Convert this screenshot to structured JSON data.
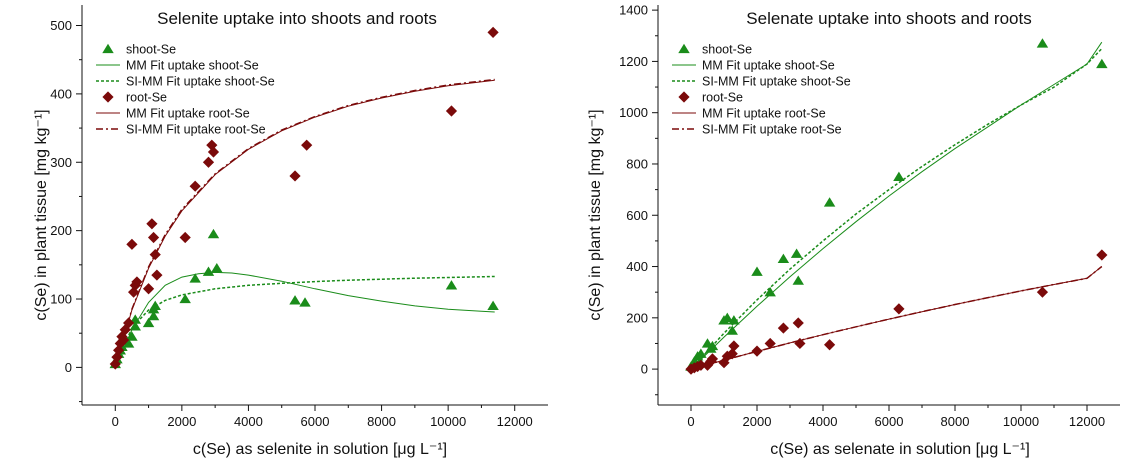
{
  "colors": {
    "shoot": "#1a8c1a",
    "root": "#7b0a0a",
    "axis": "#111111"
  },
  "chart_data": [
    {
      "type": "scatter",
      "title": "Selenite uptake into shoots and roots",
      "xlabel": "c(Se) as selenite in solution [μg L⁻¹]",
      "ylabel": "c(Se) in plant tissue [mg kg⁻¹]",
      "xlim": [
        -1000,
        13000
      ],
      "ylim": [
        -55,
        530
      ],
      "xticks": [
        0,
        2000,
        4000,
        6000,
        8000,
        10000,
        12000
      ],
      "yticks": [
        0,
        100,
        200,
        300,
        400,
        500
      ],
      "tick_labels_x": [
        "0",
        "2000",
        "4000",
        "6000",
        "8000",
        "10000",
        "12000"
      ],
      "tick_labels_y": [
        "0",
        "100",
        "200",
        "300",
        "400",
        "500"
      ],
      "legend_position": "top-left",
      "legend": [
        {
          "label": "shoot-Se",
          "kind": "marker-triangle",
          "color": "shoot"
        },
        {
          "label": "MM Fit uptake shoot-Se",
          "kind": "line-solid",
          "color": "shoot"
        },
        {
          "label": "SI-MM Fit uptake shoot-Se",
          "kind": "line-dotted",
          "color": "shoot"
        },
        {
          "label": "root-Se",
          "kind": "marker-diamond",
          "color": "root"
        },
        {
          "label": "MM Fit uptake root-Se",
          "kind": "line-solid",
          "color": "root"
        },
        {
          "label": "SI-MM Fit uptake root-Se",
          "kind": "line-dashdot",
          "color": "root"
        }
      ],
      "series": [
        {
          "name": "shoot-Se",
          "kind": "scatter",
          "marker": "triangle",
          "color": "shoot",
          "x": [
            0,
            50,
            100,
            150,
            200,
            300,
            400,
            500,
            600,
            600,
            1000,
            1150,
            1150,
            1200,
            2100,
            2400,
            2800,
            2950,
            3050,
            5400,
            5700,
            10100,
            11350
          ],
          "y": [
            5,
            12,
            20,
            25,
            30,
            40,
            35,
            45,
            60,
            70,
            65,
            75,
            85,
            90,
            100,
            130,
            140,
            195,
            145,
            98,
            95,
            120,
            90
          ]
        },
        {
          "name": "root-Se",
          "kind": "scatter",
          "marker": "diamond",
          "color": "root",
          "x": [
            0,
            50,
            100,
            150,
            200,
            250,
            300,
            400,
            500,
            550,
            600,
            650,
            1000,
            1100,
            1150,
            1200,
            1250,
            2100,
            2400,
            2800,
            2900,
            2950,
            5400,
            5750,
            10100,
            11350
          ],
          "y": [
            5,
            15,
            25,
            35,
            45,
            40,
            55,
            65,
            180,
            110,
            120,
            125,
            115,
            210,
            190,
            165,
            135,
            190,
            265,
            300,
            325,
            315,
            280,
            325,
            375,
            490
          ]
        },
        {
          "name": "MM Fit uptake shoot-Se",
          "kind": "line",
          "style": "solid",
          "color": "shoot",
          "x": [
            0,
            500,
            1000,
            1500,
            2000,
            2500,
            3000,
            3500,
            4000,
            5000,
            6000,
            7000,
            8000,
            9000,
            10000,
            11000,
            11400
          ],
          "y": [
            0,
            55,
            95,
            120,
            132,
            137,
            139,
            138,
            135,
            126,
            115,
            105,
            97,
            90,
            85,
            82,
            81
          ]
        },
        {
          "name": "SI-MM Fit uptake shoot-Se",
          "kind": "line",
          "style": "dotted",
          "color": "shoot",
          "x": [
            0,
            500,
            1000,
            1500,
            2000,
            3000,
            4000,
            5000,
            6000,
            7000,
            8000,
            9000,
            10000,
            11400
          ],
          "y": [
            0,
            58,
            84,
            98,
            106,
            115,
            120,
            123,
            125.5,
            127.5,
            129,
            130.5,
            131.5,
            133
          ]
        },
        {
          "name": "MM Fit uptake root-Se",
          "kind": "line",
          "style": "solid",
          "color": "root",
          "x": [
            0,
            500,
            1000,
            1500,
            2000,
            3000,
            4000,
            5000,
            6000,
            7000,
            8000,
            9000,
            10000,
            11400
          ],
          "y": [
            0,
            84,
            145,
            192,
            229,
            282,
            319,
            346,
            366,
            382,
            394,
            404,
            412,
            420
          ]
        },
        {
          "name": "SI-MM Fit uptake root-Se",
          "kind": "line",
          "style": "dashdot",
          "color": "root",
          "x": [
            0,
            500,
            1000,
            1500,
            2000,
            3000,
            4000,
            5000,
            6000,
            7000,
            8000,
            9000,
            10000,
            11400
          ],
          "y": [
            0,
            85,
            147,
            194,
            231,
            283,
            320,
            347,
            367,
            383,
            395,
            405,
            413,
            421
          ]
        }
      ]
    },
    {
      "type": "scatter",
      "title": "Selenate uptake into shoots and roots",
      "xlabel": "c(Se) as selenate in solution [μg L⁻¹]",
      "ylabel": "c(Se) in plant tissue [mg kg⁻¹]",
      "xlim": [
        -1000,
        13000
      ],
      "ylim": [
        -140,
        1420
      ],
      "xticks": [
        0,
        2000,
        4000,
        6000,
        8000,
        10000,
        12000
      ],
      "yticks": [
        0,
        200,
        400,
        600,
        800,
        1000,
        1200,
        1400
      ],
      "tick_labels_x": [
        "0",
        "2000",
        "4000",
        "6000",
        "8000",
        "10000",
        "12000"
      ],
      "tick_labels_y": [
        "0",
        "200",
        "400",
        "600",
        "800",
        "1000",
        "1200",
        "1400"
      ],
      "legend_position": "top-left",
      "legend": [
        {
          "label": "shoot-Se",
          "kind": "marker-triangle",
          "color": "shoot"
        },
        {
          "label": "MM Fit uptake shoot-Se",
          "kind": "line-solid",
          "color": "shoot"
        },
        {
          "label": "SI-MM Fit uptake shoot-Se",
          "kind": "line-dotted",
          "color": "shoot"
        },
        {
          "label": "root-Se",
          "kind": "marker-diamond",
          "color": "root"
        },
        {
          "label": "MM Fit uptake root-Se",
          "kind": "line-solid",
          "color": "root"
        },
        {
          "label": "SI-MM Fit uptake root-Se",
          "kind": "line-dashdot",
          "color": "root"
        }
      ],
      "series": [
        {
          "name": "shoot-Se",
          "kind": "scatter",
          "marker": "triangle",
          "color": "shoot",
          "x": [
            0,
            100,
            200,
            300,
            500,
            600,
            650,
            1000,
            1100,
            1250,
            1300,
            2000,
            2400,
            2800,
            3200,
            3250,
            4200,
            6300,
            10650,
            12450
          ],
          "y": [
            10,
            30,
            50,
            60,
            100,
            80,
            90,
            190,
            200,
            150,
            190,
            380,
            300,
            430,
            450,
            345,
            650,
            750,
            1270,
            1190
          ]
        },
        {
          "name": "root-Se",
          "kind": "scatter",
          "marker": "diamond",
          "color": "root",
          "x": [
            0,
            100,
            200,
            300,
            500,
            600,
            650,
            1000,
            1100,
            1250,
            1300,
            2000,
            2400,
            2800,
            3250,
            3300,
            4200,
            6300,
            10650,
            12450
          ],
          "y": [
            0,
            5,
            10,
            15,
            15,
            30,
            40,
            25,
            50,
            60,
            90,
            70,
            100,
            160,
            180,
            100,
            95,
            235,
            300,
            445
          ]
        },
        {
          "name": "MM Fit uptake shoot-Se",
          "kind": "line",
          "style": "solid",
          "color": "shoot",
          "x": [
            0,
            1000,
            2000,
            3000,
            4000,
            5000,
            6000,
            7000,
            8000,
            9000,
            10000,
            11000,
            12000,
            12450
          ],
          "y": [
            0,
            125,
            245,
            360,
            470,
            575,
            675,
            770,
            860,
            945,
            1030,
            1110,
            1190,
            1275
          ]
        },
        {
          "name": "SI-MM Fit uptake shoot-Se",
          "kind": "line",
          "style": "dotted",
          "color": "shoot",
          "x": [
            0,
            1000,
            2000,
            3000,
            4000,
            5000,
            6000,
            7000,
            8000,
            9000,
            10000,
            11000,
            12000,
            12450
          ],
          "y": [
            0,
            140,
            270,
            390,
            500,
            605,
            700,
            790,
            875,
            955,
            1030,
            1100,
            1190,
            1250
          ]
        },
        {
          "name": "MM Fit uptake root-Se",
          "kind": "line",
          "style": "solid",
          "color": "root",
          "x": [
            0,
            1000,
            2000,
            3000,
            4000,
            5000,
            6000,
            7000,
            8000,
            9000,
            10000,
            11000,
            12000,
            12450
          ],
          "y": [
            0,
            35,
            69,
            102,
            134,
            165,
            195,
            224,
            252,
            279,
            305,
            330,
            354,
            400
          ]
        },
        {
          "name": "SI-MM Fit uptake root-Se",
          "kind": "line",
          "style": "dashdot",
          "color": "root",
          "x": [
            0,
            1000,
            2000,
            3000,
            4000,
            5000,
            6000,
            7000,
            8000,
            9000,
            10000,
            11000,
            12000,
            12450
          ],
          "y": [
            0,
            35,
            69,
            102,
            134,
            165,
            195,
            224,
            252,
            279,
            305,
            330,
            354,
            400
          ]
        }
      ]
    }
  ]
}
